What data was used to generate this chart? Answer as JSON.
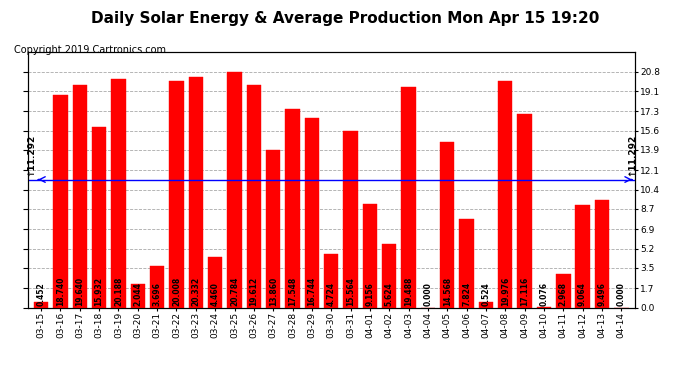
{
  "title": "Daily Solar Energy & Average Production Mon Apr 15 19:20",
  "copyright": "Copyright 2019 Cartronics.com",
  "average_value": 11.292,
  "categories": [
    "03-15",
    "03-16",
    "03-17",
    "03-18",
    "03-19",
    "03-20",
    "03-21",
    "03-22",
    "03-23",
    "03-24",
    "03-25",
    "03-26",
    "03-27",
    "03-28",
    "03-29",
    "03-30",
    "03-31",
    "04-01",
    "04-02",
    "04-03",
    "04-04",
    "04-05",
    "04-06",
    "04-07",
    "04-08",
    "04-09",
    "04-10",
    "04-11",
    "04-12",
    "04-13",
    "04-14"
  ],
  "values": [
    0.452,
    18.74,
    19.64,
    15.932,
    20.188,
    2.044,
    3.696,
    20.008,
    20.332,
    4.46,
    20.784,
    19.612,
    13.86,
    17.548,
    16.744,
    4.724,
    15.564,
    9.156,
    5.624,
    19.488,
    0.0,
    14.568,
    7.824,
    0.524,
    19.976,
    17.116,
    0.076,
    2.968,
    9.064,
    9.496,
    0.0
  ],
  "bar_color": "#FF0000",
  "bg_color": "#FFFFFF",
  "average_line_color": "#0000FF",
  "yticks_right": [
    0.0,
    1.7,
    3.5,
    5.2,
    6.9,
    8.7,
    10.4,
    12.1,
    13.9,
    15.6,
    17.3,
    19.1,
    20.8
  ],
  "legend_avg_color": "#0000CC",
  "legend_daily_color": "#FF0000",
  "title_fontsize": 11,
  "copyright_fontsize": 7,
  "tick_fontsize": 6.5,
  "bar_label_fontsize": 5.5,
  "ymax": 22.5
}
